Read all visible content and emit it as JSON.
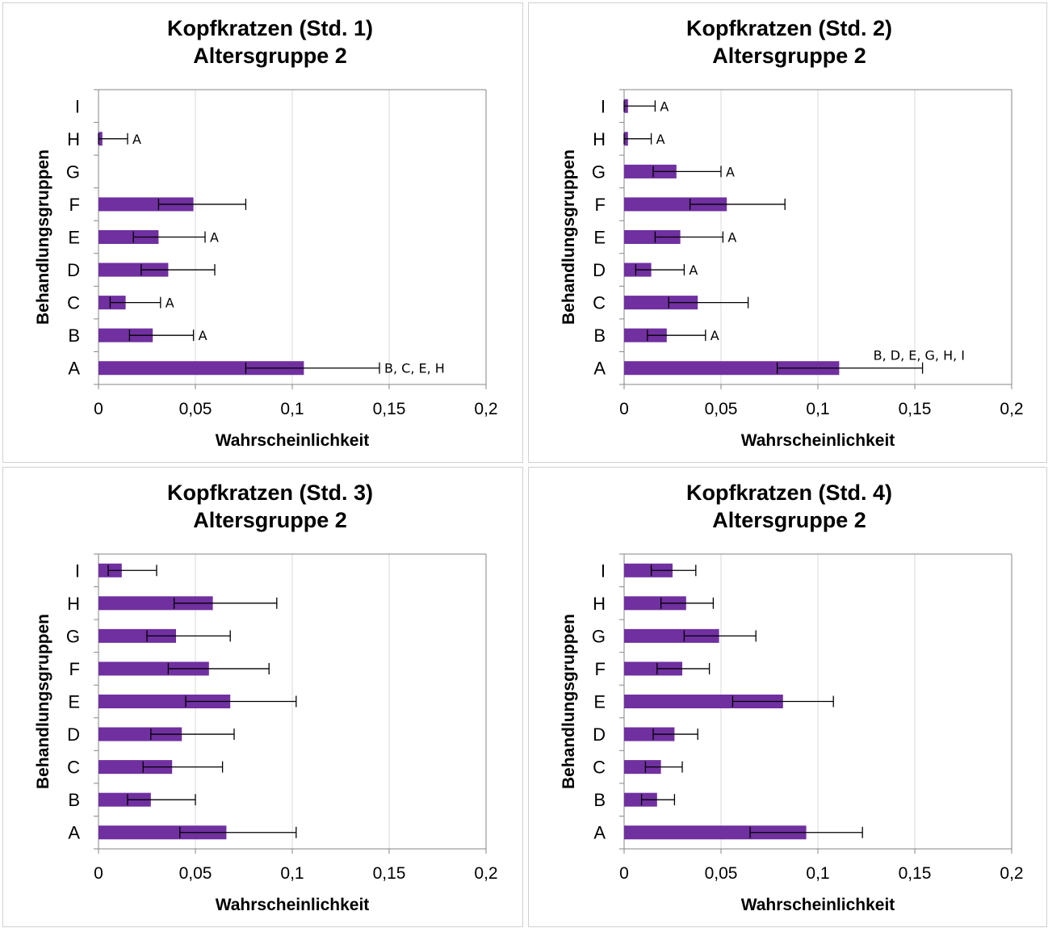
{
  "colors": {
    "bar": "#7030A0",
    "grid": "#d9d9d9",
    "axis": "#868686",
    "error": "#000000"
  },
  "chart_data": [
    {
      "type": "bar",
      "orientation": "horizontal",
      "title": "Kopfkratzen (Std. 1)",
      "subtitle": "Altersgruppe 2",
      "xlabel": "Wahrscheinlichkeit",
      "ylabel": "Behandlungsgruppen",
      "xlim": [
        0,
        0.2
      ],
      "xticks": [
        "0",
        "0,05",
        "0,1",
        "0,15",
        "0,2"
      ],
      "grid": true,
      "categories": [
        "A",
        "B",
        "C",
        "D",
        "E",
        "F",
        "G",
        "H",
        "I"
      ],
      "values": [
        0.106,
        0.028,
        0.014,
        0.036,
        0.031,
        0.049,
        0.0,
        0.002,
        0.0
      ],
      "error_low": [
        0.076,
        0.016,
        0.006,
        0.022,
        0.018,
        0.031,
        0.0,
        0.0,
        0.0
      ],
      "error_high": [
        0.145,
        0.049,
        0.032,
        0.06,
        0.055,
        0.076,
        0.0,
        0.015,
        0.0
      ],
      "annotations": [
        "B, C, E, H",
        "A",
        "A",
        "",
        "A",
        "",
        "",
        "A",
        ""
      ]
    },
    {
      "type": "bar",
      "orientation": "horizontal",
      "title": "Kopfkratzen (Std. 2)",
      "subtitle": "Altersgruppe 2",
      "xlabel": "Wahrscheinlichkeit",
      "ylabel": "Behandlungsgruppen",
      "xlim": [
        0,
        0.2
      ],
      "xticks": [
        "0",
        "0,05",
        "0,1",
        "0,15",
        "0,2"
      ],
      "grid": true,
      "categories": [
        "A",
        "B",
        "C",
        "D",
        "E",
        "F",
        "G",
        "H",
        "I"
      ],
      "values": [
        0.111,
        0.022,
        0.038,
        0.014,
        0.029,
        0.053,
        0.027,
        0.002,
        0.002
      ],
      "error_low": [
        0.079,
        0.012,
        0.023,
        0.006,
        0.016,
        0.034,
        0.015,
        0.0,
        0.0
      ],
      "error_high": [
        0.154,
        0.042,
        0.064,
        0.031,
        0.051,
        0.083,
        0.05,
        0.014,
        0.016
      ],
      "annotations": [
        "B, D, E, G, H, I",
        "A",
        "",
        "A",
        "A",
        "",
        "A",
        "A",
        "A"
      ]
    },
    {
      "type": "bar",
      "orientation": "horizontal",
      "title": "Kopfkratzen (Std. 3)",
      "subtitle": "Altersgruppe 2",
      "xlabel": "Wahrscheinlichkeit",
      "ylabel": "Behandlungsgruppen",
      "xlim": [
        0,
        0.2
      ],
      "xticks": [
        "0",
        "0,05",
        "0,1",
        "0,15",
        "0,2"
      ],
      "grid": true,
      "categories": [
        "A",
        "B",
        "C",
        "D",
        "E",
        "F",
        "G",
        "H",
        "I"
      ],
      "values": [
        0.066,
        0.027,
        0.038,
        0.043,
        0.068,
        0.057,
        0.04,
        0.059,
        0.012
      ],
      "error_low": [
        0.042,
        0.015,
        0.023,
        0.027,
        0.045,
        0.036,
        0.025,
        0.039,
        0.005
      ],
      "error_high": [
        0.102,
        0.05,
        0.064,
        0.07,
        0.102,
        0.088,
        0.068,
        0.092,
        0.03
      ],
      "annotations": [
        "",
        "",
        "",
        "",
        "",
        "",
        "",
        "",
        ""
      ]
    },
    {
      "type": "bar",
      "orientation": "horizontal",
      "title": "Kopfkratzen (Std. 4)",
      "subtitle": "Altersgruppe 2",
      "xlabel": "Wahrscheinlichkeit",
      "ylabel": "Behandlungsgruppen",
      "xlim": [
        0,
        0.2
      ],
      "xticks": [
        "0",
        "0,05",
        "0,1",
        "0,15",
        "0,2"
      ],
      "grid": true,
      "categories": [
        "A",
        "B",
        "C",
        "D",
        "E",
        "F",
        "G",
        "H",
        "I"
      ],
      "values": [
        0.094,
        0.017,
        0.019,
        0.026,
        0.082,
        0.03,
        0.049,
        0.032,
        0.025
      ],
      "error_low": [
        0.065,
        0.009,
        0.011,
        0.015,
        0.056,
        0.017,
        0.031,
        0.019,
        0.014
      ],
      "error_high": [
        0.123,
        0.026,
        0.03,
        0.038,
        0.108,
        0.044,
        0.068,
        0.046,
        0.037
      ],
      "annotations": [
        "",
        "",
        "",
        "",
        "",
        "",
        "",
        "",
        ""
      ]
    }
  ]
}
